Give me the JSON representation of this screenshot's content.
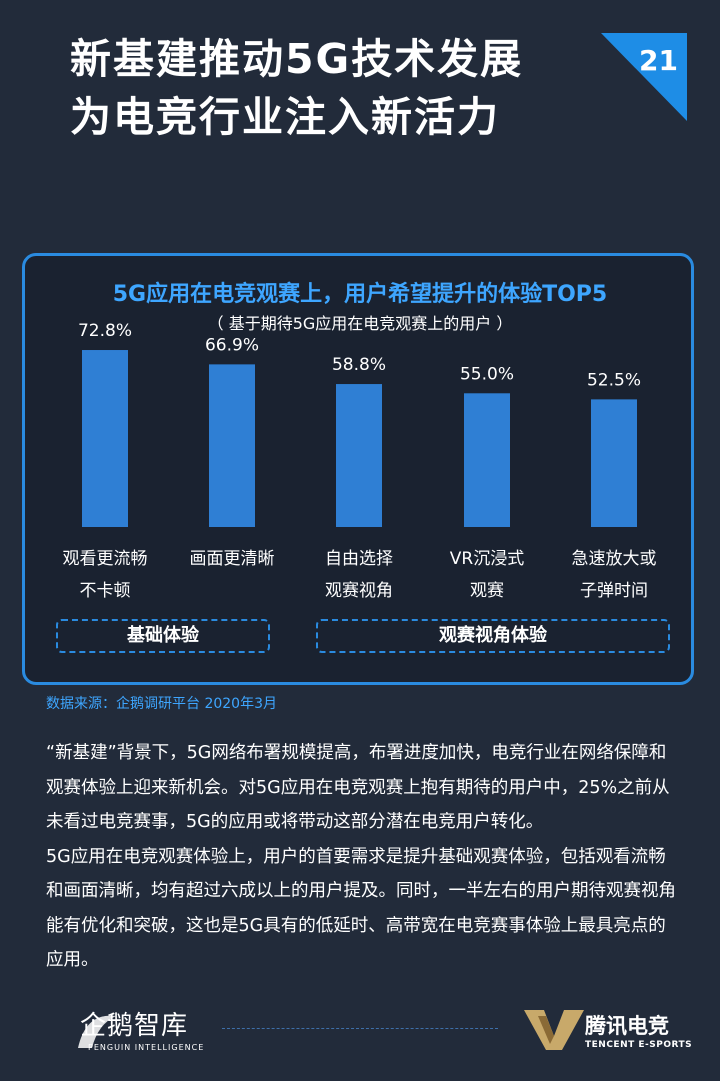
{
  "header": {
    "title_lines": [
      "新基建推动5G技术发展",
      "为电竞行业注入新活力"
    ],
    "page_number": "21",
    "corner_color": "#1e8de6"
  },
  "chart_data": {
    "type": "bar",
    "title": "5G应用在电竞观赛上，用户希望提升的体验TOP5",
    "subtitle": "（ 基于期待5G应用在电竞观赛上的用户 ）",
    "categories": [
      [
        "观看更流畅",
        "不卡顿"
      ],
      [
        "画面更清晰",
        ""
      ],
      [
        "自由选择",
        "观赛视角"
      ],
      [
        "VR沉浸式",
        "观赛"
      ],
      [
        "急速放大或",
        "子弹时间"
      ]
    ],
    "values": [
      72.8,
      66.9,
      58.8,
      55.0,
      52.5
    ],
    "value_labels": [
      "72.8%",
      "66.9%",
      "58.8%",
      "55.0%",
      "52.5%"
    ],
    "unit": "%",
    "ylim": [
      0,
      100
    ],
    "bar_color": "#2f7fd4",
    "grid": false,
    "groups": [
      {
        "label": "基础体验",
        "categories": [
          0,
          1
        ]
      },
      {
        "label": "观赛视角体验",
        "categories": [
          2,
          3,
          4
        ]
      }
    ]
  },
  "source": "数据来源：企鹅调研平台 2020年3月",
  "body": {
    "paragraphs": [
      "“新基建”背景下，5G网络布署规模提高，布署进度加快，电竞行业在网络保障和观赛体验上迎来新机会。对5G应用在电竞观赛上抱有期待的用户中，25%之前从未看过电竞赛事，5G的应用或将带动这部分潜在电竞用户转化。",
      "5G应用在电竞观赛体验上，用户的首要需求是提升基础观赛体验，包括观看流畅和画面清晰，均有超过六成以上的用户提及。同时，一半左右的用户期待观赛视角能有优化和突破，这也是5G具有的低延时、高带宽在电竞赛事体验上最具亮点的应用。"
    ]
  },
  "footer": {
    "left_logo_text": "企鹅智库",
    "left_logo_sub": "PENGUIN INTELLIGENCE",
    "right_logo_text": "腾讯电竞",
    "right_logo_sub": "TENCENT E-SPORTS"
  }
}
